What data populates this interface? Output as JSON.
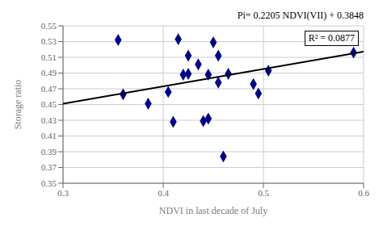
{
  "chart_data": {
    "type": "scatter",
    "xlabel": "NDVI in last decade of July",
    "ylabel": "Storage ratio",
    "annotations": [
      "Pi= 0.2205 NDVI(VII) + 0.3848",
      "R² = 0.0877"
    ],
    "series": [
      {
        "type": "scatter",
        "color": "#00008B",
        "marker": "diamond",
        "x": [
          0.355,
          0.36,
          0.385,
          0.405,
          0.41,
          0.415,
          0.42,
          0.425,
          0.425,
          0.435,
          0.44,
          0.445,
          0.445,
          0.45,
          0.455,
          0.455,
          0.46,
          0.465,
          0.49,
          0.495,
          0.505,
          0.59
        ],
        "values": [
          0.532,
          0.463,
          0.451,
          0.466,
          0.428,
          0.533,
          0.488,
          0.489,
          0.512,
          0.501,
          0.429,
          0.488,
          0.432,
          0.529,
          0.512,
          0.478,
          0.384,
          0.489,
          0.476,
          0.464,
          0.493,
          0.516
        ]
      },
      {
        "type": "line",
        "color": "#000000",
        "x": [
          0.3,
          0.6
        ],
        "values": [
          0.45095,
          0.5171
        ]
      }
    ],
    "xlim": [
      0.3,
      0.6
    ],
    "ylim": [
      0.35,
      0.55
    ],
    "xticks": [
      0.3,
      0.4,
      0.5,
      0.6
    ],
    "yticks": [
      0.35,
      0.37,
      0.39,
      0.41,
      0.43,
      0.45,
      0.47,
      0.49,
      0.51,
      0.53,
      0.55
    ],
    "grid": true
  }
}
